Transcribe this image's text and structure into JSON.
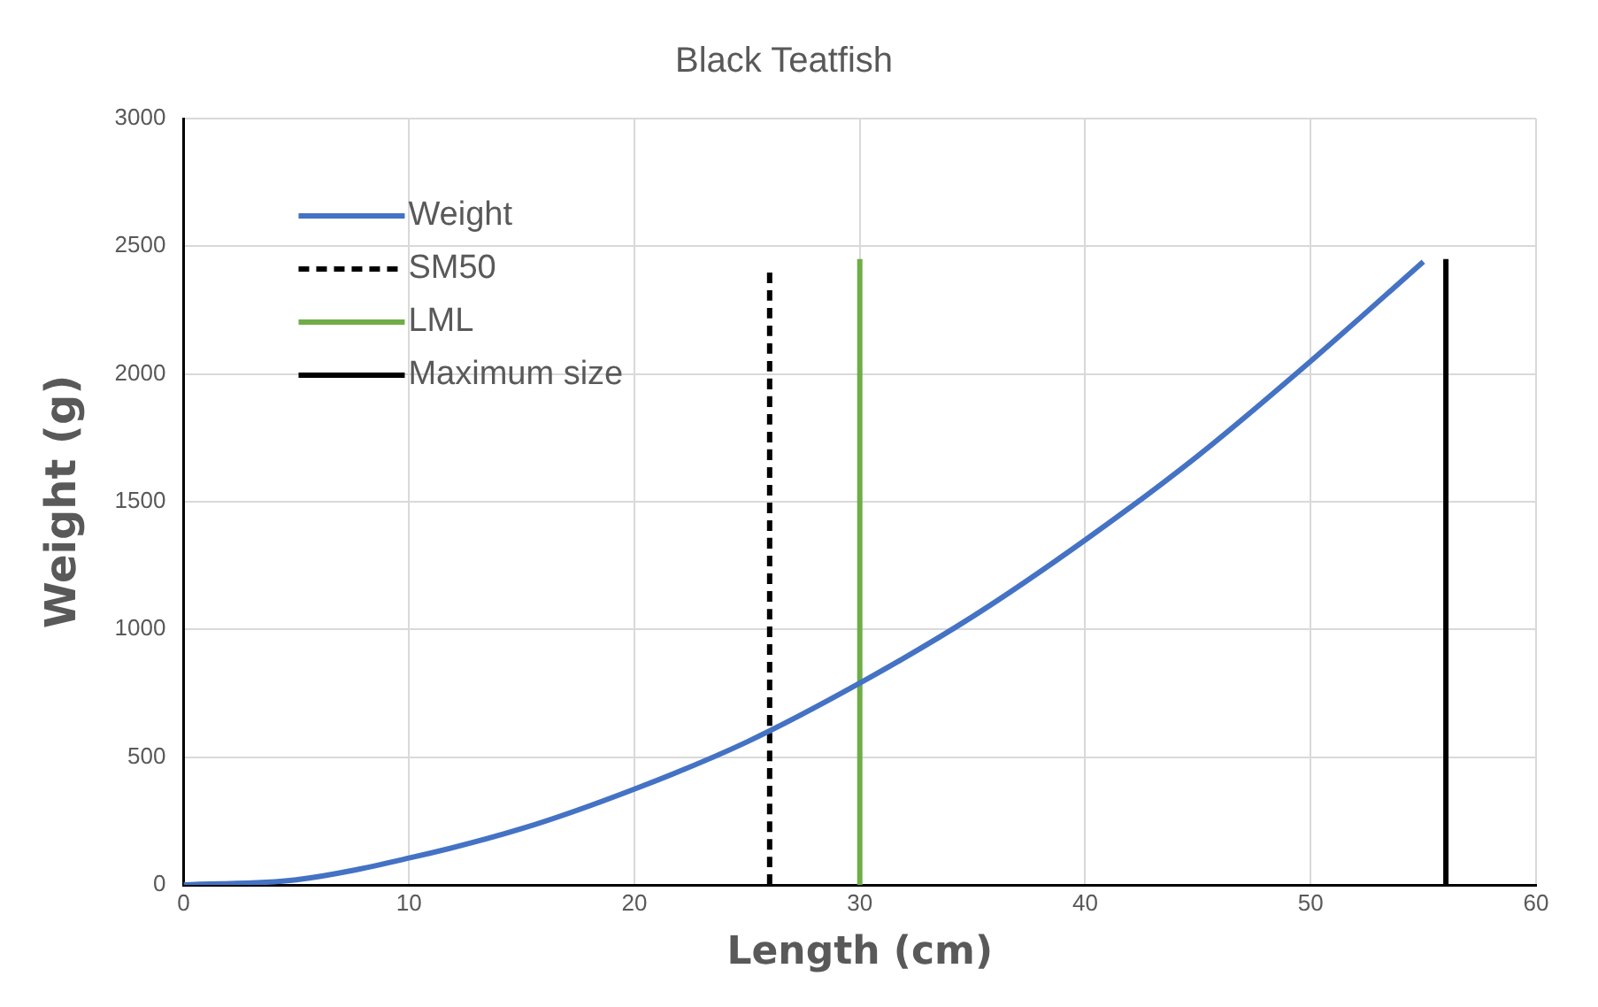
{
  "chart_data": {
    "type": "line",
    "title": "Black Teatfish",
    "xlabel": "Length (cm)",
    "ylabel": "Weight (g)",
    "xlim": [
      0,
      60
    ],
    "xticks": [
      0,
      10,
      20,
      30,
      40,
      50,
      60
    ],
    "ylim": [
      0,
      3000
    ],
    "yticks": [
      0,
      500,
      1000,
      1500,
      2000,
      2500,
      3000
    ],
    "grid": true,
    "legend": "top left",
    "marker": "none",
    "series": [
      {
        "name": "Weight",
        "color": "#4472c4",
        "line_style": "solid",
        "x": [
          0,
          5,
          10,
          15,
          20,
          25,
          30,
          35,
          40,
          45,
          50,
          55
        ],
        "values": [
          0,
          20,
          105,
          220,
          375,
          560,
          790,
          1050,
          1350,
          1680,
          2050,
          2440
        ]
      },
      {
        "name": "SM50",
        "color": "#000000",
        "line_style": "dashed",
        "x": [
          26,
          26
        ],
        "values": [
          0,
          2420
        ]
      },
      {
        "name": "LML",
        "color": "#70ad47",
        "line_style": "solid",
        "x": [
          30,
          30
        ],
        "values": [
          0,
          2450
        ]
      },
      {
        "name": "Maximum size",
        "color": "#000000",
        "line_style": "solid",
        "x": [
          56,
          56
        ],
        "values": [
          0,
          2450
        ]
      }
    ]
  }
}
